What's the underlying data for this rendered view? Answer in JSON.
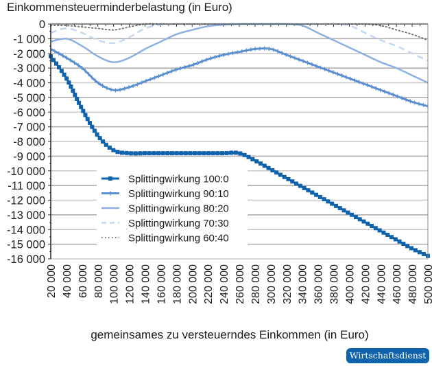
{
  "chart_data": {
    "type": "line",
    "title": "Einkommensteuerminderbelastung (in Euro)",
    "xlabel": "gemeinsames zu versteuerndes Einkommen (in Euro)",
    "ylabel": "Einkommensteuerminderbelastung (in Euro)",
    "xlim": [
      20000,
      500000
    ],
    "ylim": [
      -16000,
      0
    ],
    "grid": true,
    "legend_position": "inside-lower-left",
    "x": [
      20000,
      40000,
      60000,
      80000,
      100000,
      120000,
      140000,
      160000,
      180000,
      200000,
      220000,
      240000,
      260000,
      280000,
      300000,
      320000,
      340000,
      360000,
      380000,
      400000,
      420000,
      440000,
      460000,
      480000,
      500000
    ],
    "x_tick_labels": [
      "20 000",
      "40 000",
      "60 000",
      "80 000",
      "100 000",
      "120 000",
      "140 000",
      "160 000",
      "180 000",
      "200 000",
      "220 000",
      "240 000",
      "260 000",
      "280 000",
      "300 000",
      "320 000",
      "340 000",
      "360 000",
      "380 000",
      "400 000",
      "420 000",
      "440 000",
      "460 000",
      "480 000",
      "500 000"
    ],
    "y_ticks": [
      0,
      -1000,
      -2000,
      -3000,
      -4000,
      -5000,
      -6000,
      -7000,
      -8000,
      -9000,
      -10000,
      -11000,
      -12000,
      -13000,
      -14000,
      -15000,
      -16000
    ],
    "y_tick_labels": [
      "0",
      "-1 000",
      "-2 000",
      "-3 000",
      "-4 000",
      "-5 000",
      "-6 000",
      "-7 000",
      "-8 000",
      "-9 000",
      "-10 000",
      "-11 000",
      "-12 000",
      "-13 000",
      "-14 000",
      "-15 000",
      "-16 000"
    ],
    "series": [
      {
        "name": "Splittingwirkung 100:0",
        "color": "#0f62ac",
        "style": "solid-square-markers",
        "width": 3,
        "values": [
          -2200,
          -3700,
          -5800,
          -7600,
          -8600,
          -8800,
          -8800,
          -8800,
          -8800,
          -8800,
          -8800,
          -8800,
          -8800,
          -9300,
          -9900,
          -10500,
          -11100,
          -11700,
          -12300,
          -12900,
          -13500,
          -14100,
          -14700,
          -15300,
          -15800
        ]
      },
      {
        "name": "Splittingwirkung 90:10",
        "color": "#5a8fd0",
        "style": "solid-tick-markers",
        "width": 3,
        "values": [
          -1700,
          -2300,
          -3000,
          -4000,
          -4500,
          -4300,
          -3900,
          -3500,
          -3100,
          -2800,
          -2400,
          -2100,
          -1900,
          -1700,
          -1700,
          -2100,
          -2500,
          -2900,
          -3300,
          -3700,
          -4100,
          -4500,
          -4900,
          -5300,
          -5600
        ]
      },
      {
        "name": "Splittingwirkung 80:20",
        "color": "#8db0e0",
        "style": "solid",
        "width": 2.5,
        "values": [
          -1200,
          -1000,
          -1500,
          -2200,
          -2600,
          -2300,
          -1700,
          -1200,
          -700,
          -400,
          -150,
          -50,
          0,
          0,
          0,
          0,
          -100,
          -600,
          -1100,
          -1600,
          -2100,
          -2600,
          -3000,
          -3500,
          -4000
        ]
      },
      {
        "name": "Splittingwirkung 70:30",
        "color": "#c5d6ef",
        "style": "dashed",
        "width": 2.5,
        "values": [
          -600,
          -300,
          -600,
          -1100,
          -1300,
          -900,
          -300,
          -50,
          0,
          0,
          0,
          0,
          0,
          0,
          0,
          0,
          0,
          0,
          0,
          -100,
          -600,
          -1100,
          -1500,
          -2000,
          -2500
        ]
      },
      {
        "name": "Splittingwirkung 60:40",
        "color": "#777777",
        "style": "dotted",
        "width": 2,
        "values": [
          -100,
          -100,
          -200,
          -300,
          -400,
          -200,
          0,
          0,
          0,
          0,
          0,
          0,
          0,
          0,
          0,
          0,
          0,
          0,
          0,
          0,
          0,
          -100,
          -400,
          -700,
          -1100
        ]
      }
    ]
  },
  "header": {
    "title": "Einkommensteuerminderbelastung (in Euro)"
  },
  "footer": {
    "xlabel": "gemeinsames zu versteuerndes Einkommen (in Euro)",
    "badge": "Wirtschaftsdienst"
  }
}
